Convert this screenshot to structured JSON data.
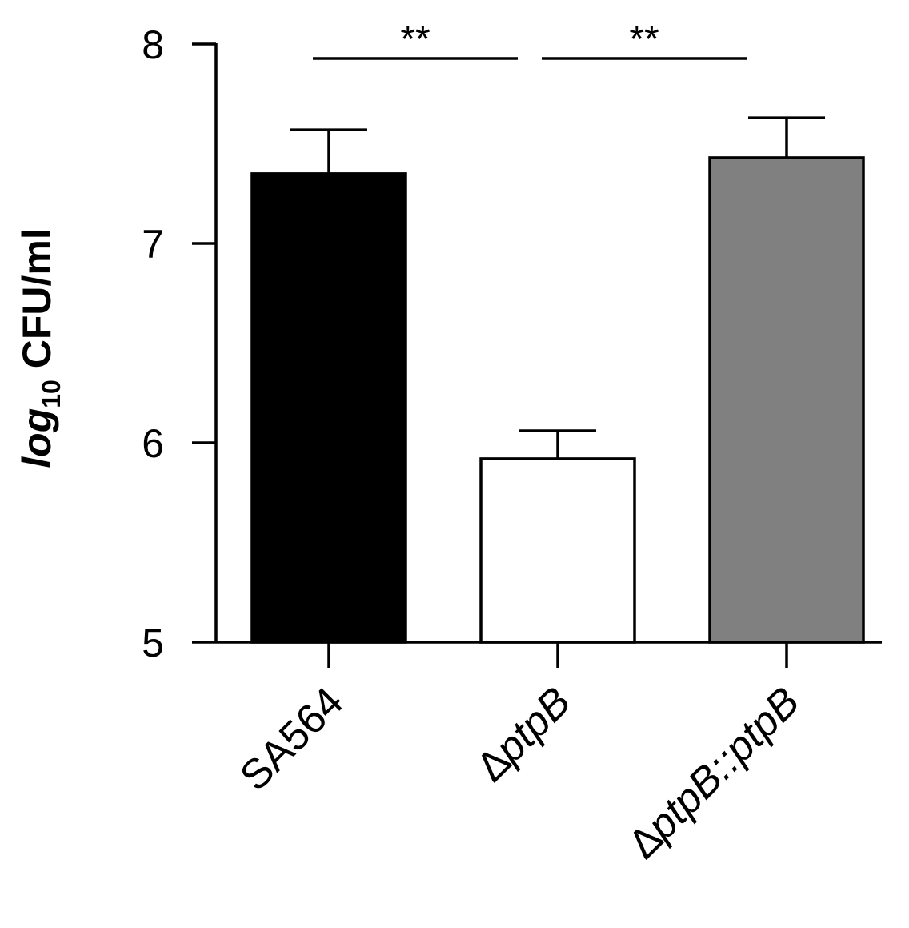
{
  "chart_data": {
    "type": "bar",
    "ylabel": {
      "prefix": "log",
      "subscript": "10",
      "suffix": " CFU/ml"
    },
    "ylim": [
      5,
      8
    ],
    "yticks": [
      5,
      6,
      7,
      8
    ],
    "grid": false,
    "categories": [
      {
        "delta": "",
        "label": "SA564"
      },
      {
        "delta": "∆",
        "label": "ptpB"
      },
      {
        "delta": "∆",
        "label": "ptpB::ptpB"
      }
    ],
    "values": [
      7.35,
      5.92,
      7.43
    ],
    "errors": [
      0.22,
      0.14,
      0.2
    ],
    "bar_colors": [
      "#000000",
      "#ffffff",
      "#808080"
    ],
    "significance": [
      {
        "from": 0,
        "to": 1,
        "label": "**"
      },
      {
        "from": 1,
        "to": 2,
        "label": "**"
      }
    ]
  }
}
